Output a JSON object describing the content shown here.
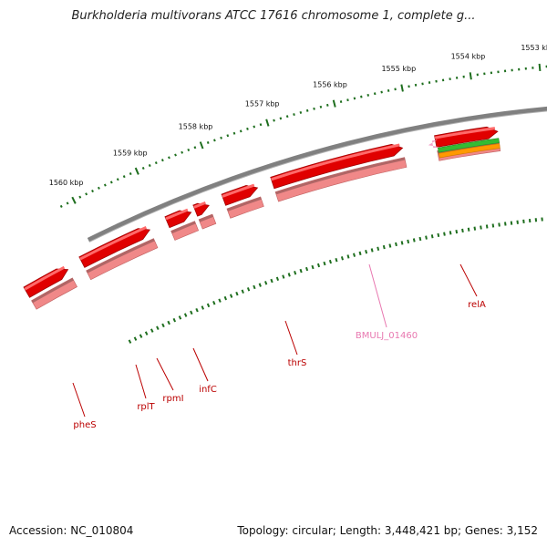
{
  "title": "Burkholderia multivorans ATCC 17616 chromosome 1, complete g...",
  "footer": {
    "accession": "Accession: NC_010804",
    "summary": "Topology: circular; Length: 3,448,421 bp; Genes: 3,152"
  },
  "colors": {
    "backbone": "#808080",
    "gene_dark": "#e00000",
    "gene_light": "#f08888",
    "green": "#33bb33",
    "orange": "#ff9900",
    "pink": "#f4a0c8",
    "tick": "#1e6e1e",
    "label_red": "#bb0000",
    "label_pink": "#e878b0"
  },
  "ruler": {
    "labels": [
      "1553 kbp",
      "1554 kbp",
      "1555 kbp",
      "1556 kbp",
      "1557 kbp",
      "1558 kbp",
      "1559 kbp",
      "1560 kbp"
    ]
  },
  "genes": [
    {
      "name": "relA",
      "color": "label_red"
    },
    {
      "name": "BMULJ_01460",
      "color": "label_pink"
    },
    {
      "name": "thrS",
      "color": "label_red"
    },
    {
      "name": "infC",
      "color": "label_red"
    },
    {
      "name": "rpmI",
      "color": "label_red"
    },
    {
      "name": "rplT",
      "color": "label_red"
    },
    {
      "name": "pheS",
      "color": "label_red"
    }
  ]
}
